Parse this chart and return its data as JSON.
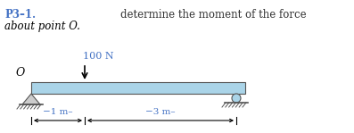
{
  "title_left": "P3–1.",
  "title_right": "determine the moment of the force",
  "subtitle": "about point O.",
  "title_color": "#4472c4",
  "text_color": "#333333",
  "force_label": "100 N",
  "force_label_color": "#4472c4",
  "beam_color": "#aad4e8",
  "beam_edge_color": "#555555",
  "background_color": "#ffffff",
  "dim_color": "#4472c4",
  "dim_label1": "−1 m–",
  "dim_label2": "−3 m–",
  "support_color": "#888888",
  "ground_color": "#888888"
}
